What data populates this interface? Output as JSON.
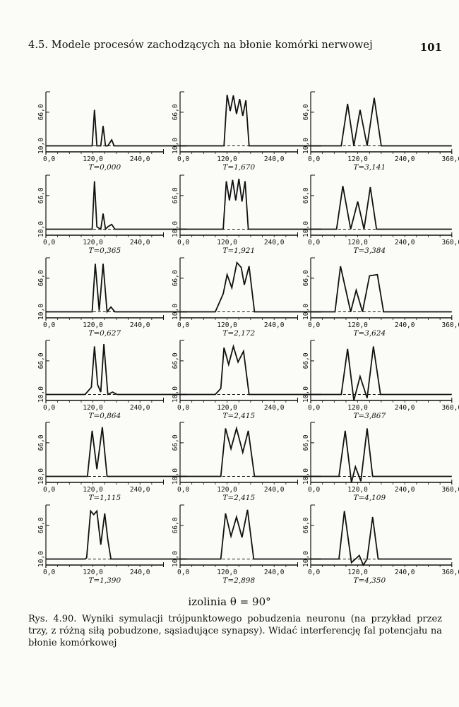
{
  "header": {
    "running_head": "4.5. Modele procesów zachodzących na błonie komórki nerwowej",
    "page_number": "101"
  },
  "chart_data": {
    "type": "line",
    "grid_rows": 6,
    "grid_cols": 3,
    "x_ticks": [
      "0,0",
      "120,0",
      "240,0",
      "360,0"
    ],
    "x_tick_values": [
      0,
      120,
      240,
      360
    ],
    "y_ticks": [
      "10,0",
      "66,0"
    ],
    "y_tick_values": [
      10,
      66
    ],
    "ylim": [
      0,
      100
    ],
    "baseline": 10,
    "panels": [
      {
        "label": "T=0,000",
        "x": [
          0,
          100,
          118,
          124,
          130,
          140,
          146,
          152,
          158,
          168,
          174,
          180,
          360
        ],
        "y": [
          10,
          10,
          10,
          70,
          10,
          10,
          43,
          10,
          10,
          20,
          10,
          10,
          10
        ]
      },
      {
        "label": "T=1,670",
        "x": [
          0,
          100,
          112,
          120,
          128,
          136,
          144,
          152,
          160,
          168,
          176,
          186,
          360
        ],
        "y": [
          10,
          10,
          10,
          95,
          68,
          94,
          63,
          88,
          60,
          86,
          10,
          10,
          10
        ]
      },
      {
        "label": "T=3,141",
        "x": [
          0,
          50,
          78,
          94,
          110,
          126,
          144,
          162,
          180,
          200,
          360
        ],
        "y": [
          10,
          10,
          10,
          80,
          10,
          70,
          10,
          90,
          10,
          10,
          10
        ]
      },
      {
        "label": "T=0,365",
        "x": [
          0,
          100,
          118,
          124,
          130,
          140,
          146,
          152,
          158,
          168,
          176,
          186,
          360
        ],
        "y": [
          10,
          10,
          10,
          90,
          14,
          10,
          36,
          10,
          14,
          18,
          10,
          10,
          10
        ]
      },
      {
        "label": "T=1,921",
        "x": [
          0,
          100,
          110,
          118,
          126,
          134,
          142,
          150,
          158,
          166,
          174,
          186,
          360
        ],
        "y": [
          10,
          10,
          10,
          90,
          58,
          92,
          58,
          94,
          56,
          90,
          10,
          10,
          10
        ]
      },
      {
        "label": "T=3,384",
        "x": [
          0,
          50,
          66,
          82,
          102,
          120,
          136,
          152,
          168,
          184,
          360
        ],
        "y": [
          10,
          10,
          10,
          82,
          10,
          56,
          10,
          80,
          10,
          10,
          10
        ]
      },
      {
        "label": "T=0,627",
        "x": [
          0,
          100,
          118,
          126,
          136,
          146,
          156,
          166,
          176,
          186,
          360
        ],
        "y": [
          10,
          10,
          10,
          90,
          12,
          90,
          10,
          18,
          10,
          10,
          10
        ]
      },
      {
        "label": "T=2,172",
        "x": [
          0,
          90,
          110,
          120,
          132,
          145,
          156,
          164,
          176,
          190,
          360
        ],
        "y": [
          10,
          10,
          40,
          72,
          50,
          92,
          84,
          55,
          86,
          10,
          10
        ]
      },
      {
        "label": "T=3,624",
        "x": [
          0,
          50,
          62,
          76,
          102,
          116,
          132,
          150,
          170,
          186,
          360
        ],
        "y": [
          10,
          10,
          10,
          86,
          10,
          46,
          10,
          70,
          72,
          10,
          10
        ]
      },
      {
        "label": "T=0,864",
        "x": [
          0,
          100,
          116,
          124,
          132,
          140,
          148,
          158,
          170,
          182,
          360
        ],
        "y": [
          10,
          10,
          22,
          90,
          26,
          14,
          94,
          10,
          14,
          10,
          10
        ]
      },
      {
        "label": "T=2,415",
        "x": [
          0,
          90,
          104,
          112,
          124,
          136,
          148,
          162,
          176,
          190,
          360
        ],
        "y": [
          10,
          10,
          20,
          88,
          60,
          90,
          64,
          82,
          10,
          10,
          10
        ]
      },
      {
        "label": "T=3,867",
        "x": [
          0,
          50,
          78,
          94,
          110,
          126,
          144,
          160,
          178,
          194,
          360
        ],
        "y": [
          10,
          10,
          10,
          86,
          0,
          40,
          4,
          90,
          10,
          10,
          10
        ]
      },
      {
        "label": "T=1,115",
        "x": [
          0,
          95,
          106,
          118,
          130,
          144,
          156,
          170,
          360
        ],
        "y": [
          10,
          10,
          10,
          86,
          22,
          92,
          10,
          10,
          10
        ]
      },
      {
        "label": "T=2,415",
        "x": [
          0,
          90,
          104,
          116,
          130,
          144,
          160,
          174,
          190,
          360
        ],
        "y": [
          10,
          10,
          10,
          90,
          56,
          90,
          50,
          86,
          10,
          10
        ]
      },
      {
        "label": "T=4,109",
        "x": [
          0,
          50,
          72,
          88,
          104,
          114,
          128,
          144,
          158,
          172,
          360
        ],
        "y": [
          10,
          10,
          10,
          86,
          0,
          26,
          2,
          90,
          10,
          10,
          10
        ]
      },
      {
        "label": "T=1,390",
        "x": [
          0,
          100,
          104,
          114,
          122,
          130,
          140,
          150,
          158,
          166,
          180,
          360
        ],
        "y": [
          10,
          10,
          12,
          90,
          84,
          90,
          34,
          86,
          42,
          10,
          10,
          10
        ]
      },
      {
        "label": "T=2,898",
        "x": [
          0,
          90,
          104,
          116,
          130,
          144,
          158,
          172,
          188,
          360
        ],
        "y": [
          10,
          10,
          10,
          86,
          48,
          80,
          46,
          92,
          10,
          10
        ]
      },
      {
        "label": "T=4,350",
        "x": [
          0,
          50,
          72,
          86,
          104,
          114,
          124,
          134,
          144,
          158,
          172,
          360
        ],
        "y": [
          10,
          10,
          10,
          90,
          4,
          10,
          16,
          0,
          10,
          80,
          10,
          10
        ]
      }
    ]
  },
  "figure_note": "izolinia θ = 90°",
  "caption": "Rys. 4.90. Wyniki symulacji trójpunktowego pobudzenia neuronu (na przykład przez trzy, z różną siłą pobudzone, sąsiadujące synapsy). Widać interferencję fal potencjału na błonie komórkowej"
}
